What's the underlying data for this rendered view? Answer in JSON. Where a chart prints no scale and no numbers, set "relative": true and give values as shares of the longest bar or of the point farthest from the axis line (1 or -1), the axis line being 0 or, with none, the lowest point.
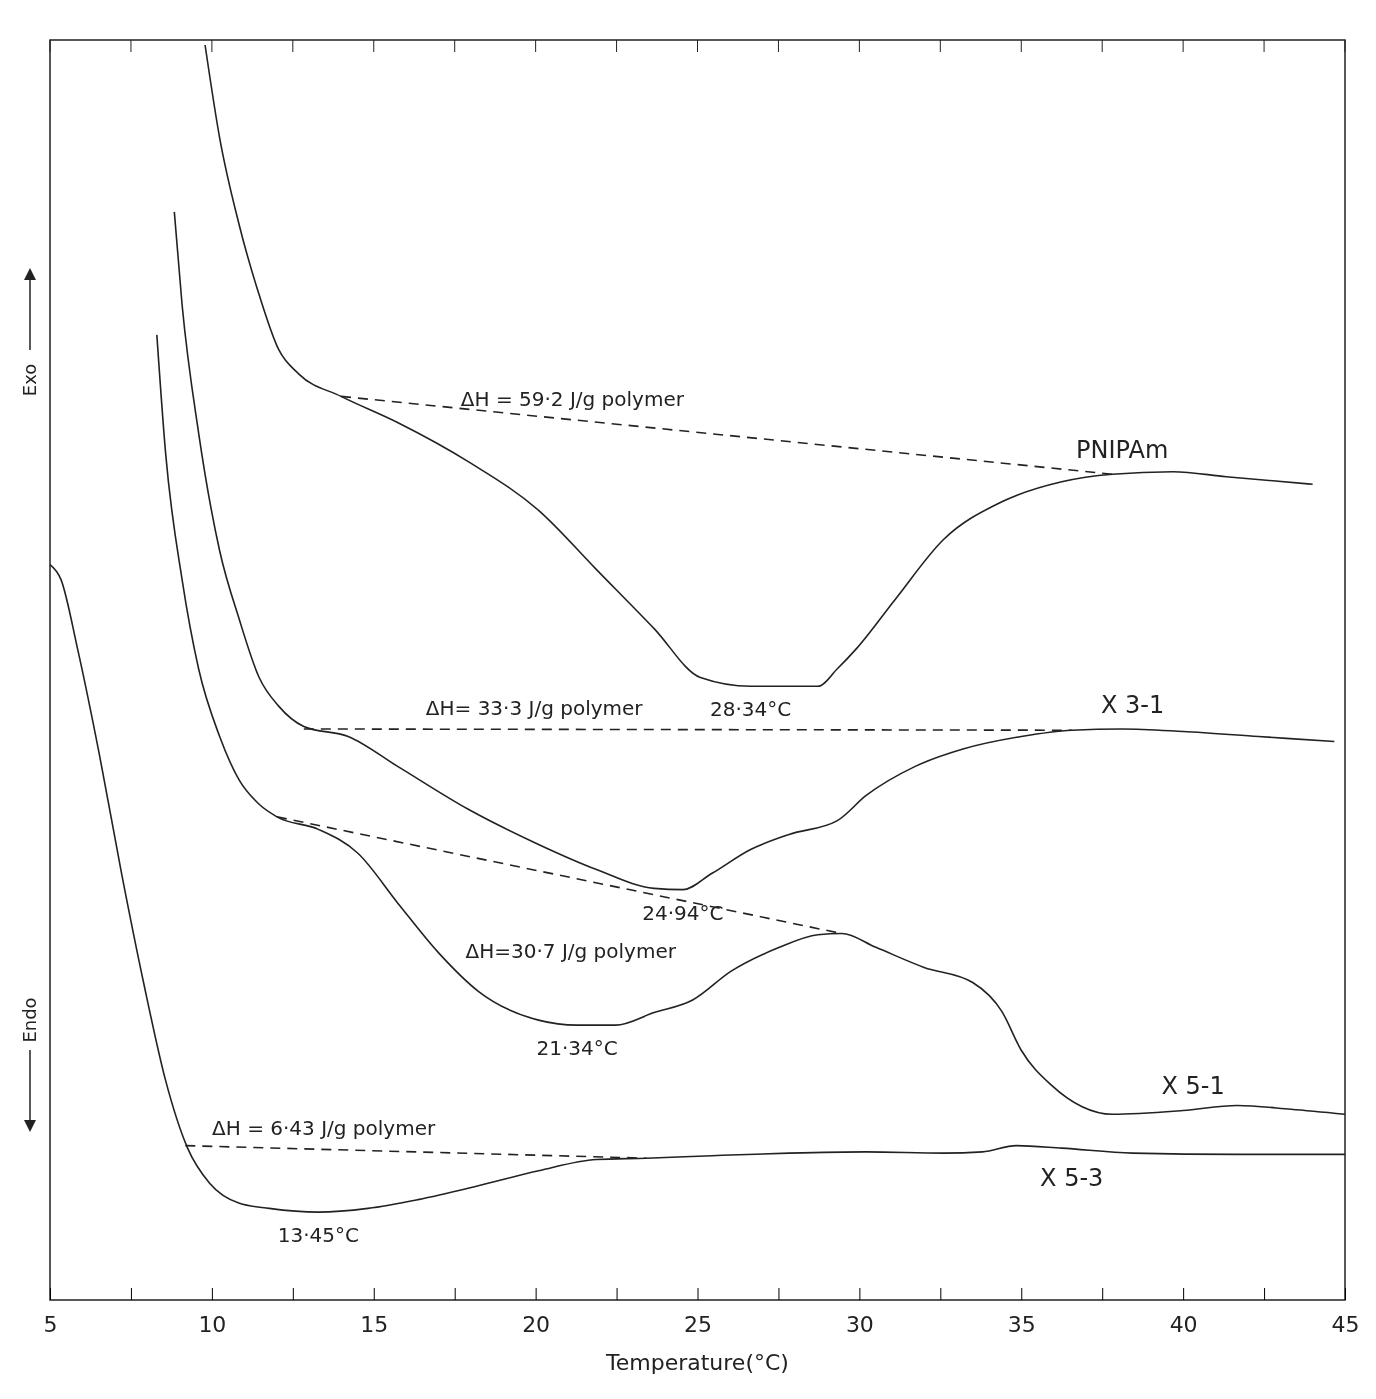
{
  "chart_data": {
    "type": "line",
    "relative": true,
    "xlabel": "Temperature(°C)",
    "xlim": [
      5,
      45
    ],
    "xticks": [
      5,
      {
        "value": 7.5,
        "label": null
      },
      10,
      {
        "value": 12.5,
        "label": null
      },
      15,
      {
        "value": 17.5,
        "label": null
      },
      20,
      {
        "value": 22.5,
        "label": null
      },
      25,
      {
        "value": 27.5,
        "label": null
      },
      30,
      {
        "value": 32.5,
        "label": null
      },
      35,
      {
        "value": 37.5,
        "label": null
      },
      40,
      {
        "value": 42.5,
        "label": null
      },
      45
    ],
    "grid": false,
    "legend": false,
    "marker": "none",
    "series": [
      {
        "name": "PNIPAm",
        "color": "#222222",
        "line_style": "solid",
        "x": [
          9.79,
          10.24,
          10.85,
          11.46,
          12.07,
          12.68,
          13.99,
          15.75,
          17.92,
          20.1,
          21.88,
          23.66,
          25.09,
          26.64,
          27.83,
          28.72,
          29.32,
          29.91,
          31.1,
          32.6,
          34.4,
          36.25,
          37.81,
          39.69,
          41.33,
          44.0
        ],
        "values": [
          1.0,
          0.926,
          0.856,
          0.801,
          0.757,
          0.738,
          0.72,
          0.699,
          0.668,
          0.629,
          0.582,
          0.535,
          0.496,
          0.489,
          0.489,
          0.489,
          0.503,
          0.519,
          0.558,
          0.606,
          0.636,
          0.652,
          0.658,
          0.66,
          0.656,
          0.65
        ]
      },
      {
        "name": "X 3-1",
        "color": "#222222",
        "line_style": "solid",
        "x": [
          8.84,
          9.08,
          9.59,
          10.24,
          10.85,
          11.46,
          12.07,
          12.84,
          14.21,
          15.75,
          17.92,
          20.09,
          21.88,
          23.66,
          24.55,
          25.45,
          26.64,
          27.83,
          29.32,
          30.21,
          31.71,
          33.2,
          35,
          36.56,
          38.13,
          40,
          42.33,
          44.67
        ],
        "values": [
          0.867,
          0.793,
          0.691,
          0.597,
          0.542,
          0.496,
          0.473,
          0.457,
          0.449,
          0.425,
          0.391,
          0.363,
          0.343,
          0.328,
          0.327,
          0.34,
          0.359,
          0.371,
          0.382,
          0.402,
          0.425,
          0.439,
          0.449,
          0.454,
          0.455,
          0.453,
          0.449,
          0.445
        ]
      },
      {
        "name": "X 5-1",
        "color": "#222222",
        "line_style": "solid",
        "x": [
          8.3,
          8.57,
          9.08,
          9.59,
          10.24,
          10.85,
          11.46,
          12.01,
          13.29,
          14.51,
          15.75,
          16.99,
          18.23,
          20.09,
          21.28,
          22.47,
          23.66,
          24.85,
          26.04,
          27.53,
          28.72,
          29.46,
          30.51,
          32.0,
          33.5,
          34.4,
          35,
          35.94,
          36.88,
          37.81,
          40,
          41.67,
          43.33,
          45
        ],
        "values": [
          0.769,
          0.675,
          0.574,
          0.503,
          0.449,
          0.414,
          0.395,
          0.385,
          0.375,
          0.356,
          0.316,
          0.277,
          0.246,
          0.223,
          0.219,
          0.219,
          0.229,
          0.239,
          0.262,
          0.281,
          0.291,
          0.292,
          0.281,
          0.265,
          0.253,
          0.23,
          0.199,
          0.171,
          0.154,
          0.148,
          0.151,
          0.155,
          0.152,
          0.148
        ]
      },
      {
        "name": "X 5-3",
        "color": "#222222",
        "line_style": "solid",
        "x": [
          5,
          5.34,
          5.85,
          6.53,
          7.21,
          7.89,
          8.57,
          9.25,
          9.93,
          10.85,
          11.77,
          13.29,
          14.82,
          16.37,
          18.23,
          20.09,
          21.88,
          23.42,
          25.45,
          27.83,
          30.21,
          32.6,
          33.8,
          34.85,
          36.25,
          38.44,
          41.67,
          45
        ],
        "values": [
          0.586,
          0.574,
          0.519,
          0.434,
          0.34,
          0.253,
          0.175,
          0.121,
          0.093,
          0.077,
          0.073,
          0.07,
          0.073,
          0.08,
          0.091,
          0.103,
          0.112,
          0.113,
          0.115,
          0.117,
          0.118,
          0.117,
          0.118,
          0.123,
          0.121,
          0.117,
          0.116,
          0.116
        ]
      },
      {
        "color": "#222222",
        "line_style": "dashed",
        "x": [
          13.99,
          37.81
        ],
        "values": [
          0.72,
          0.658
        ]
      },
      {
        "color": "#222222",
        "line_style": "dashed",
        "x": [
          12.84,
          36.56
        ],
        "values": [
          0.455,
          0.454
        ]
      },
      {
        "color": "#222222",
        "line_style": "dashed",
        "x": [
          12.01,
          29.46
        ],
        "values": [
          0.385,
          0.292
        ]
      },
      {
        "color": "#222222",
        "line_style": "dashed",
        "x": [
          9.18,
          23.42
        ],
        "values": [
          0.123,
          0.113
        ]
      }
    ],
    "annotations": [
      "ΔH = 59·2 J/g polymer",
      "28·34°C",
      "ΔH= 33·3 J/g polymer",
      "24·94°C",
      "ΔH=30·7 J/g polymer",
      "21·34°C",
      "ΔH = 6·43 J/g polymer",
      "13·45°C",
      "Exo",
      "Endo"
    ]
  }
}
